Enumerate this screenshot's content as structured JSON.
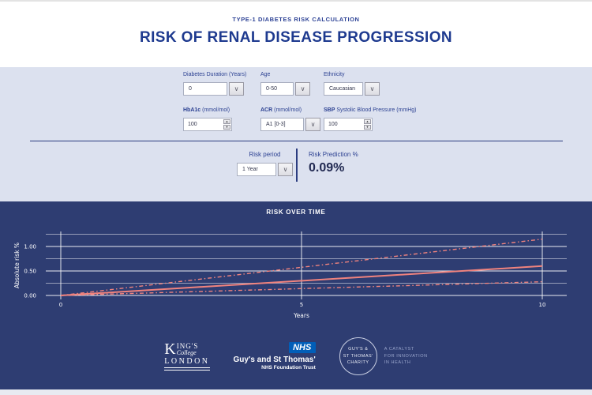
{
  "header": {
    "eyebrow": "TYPE-1 DIABETES RISK CALCULATION",
    "title": "RISK OF RENAL DISEASE PROGRESSION"
  },
  "form": {
    "diabetes_duration": {
      "label": "Diabetes Duration (Years)",
      "value": "0"
    },
    "age": {
      "label": "Age",
      "value": "0-50"
    },
    "ethnicity": {
      "label": "Ethnicity",
      "value": "Caucasian"
    },
    "hba1c": {
      "label_bold": "HbA1c",
      "label_rest": " (mmol/mol)",
      "value": "100"
    },
    "acr": {
      "label_bold": "ACR",
      "label_rest": " (mmol/mol)",
      "value": "A1 [0-3]"
    },
    "sbp": {
      "label_bold": "SBP",
      "label_rest": " Systolic Blood Pressure (mmHg)",
      "value": "100"
    },
    "risk_period": {
      "label": "Risk period",
      "value": "1 Year"
    },
    "risk_prediction": {
      "label": "Risk Prediction %",
      "value": "0.09%"
    }
  },
  "icons": {
    "chevron_down": "∨",
    "spin_up": "▲",
    "spin_down": "▼"
  },
  "chart_data": {
    "type": "line",
    "title": "RISK OVER TIME",
    "xlabel": "Years",
    "ylabel": "Absolute risk %",
    "xlim": [
      0,
      10
    ],
    "ylim": [
      0,
      1.25
    ],
    "x_ticks": [
      0,
      5,
      10
    ],
    "x_tick_labels": [
      "0",
      "5",
      "10"
    ],
    "y_ticks": [
      0,
      0.5,
      1
    ],
    "y_tick_labels": [
      "0.00",
      "0.50",
      "1.00"
    ],
    "y_gridlines": [
      0,
      0.25,
      0.5,
      0.75,
      1.0,
      1.25
    ],
    "grid": true,
    "legend": "none",
    "background": "#2e3d72",
    "line_color": "#f0837e",
    "series": [
      {
        "name": "upper confidence bound",
        "style": "dashdot",
        "color": "#f0837e",
        "x": [
          0,
          10
        ],
        "y": [
          0.0,
          1.15
        ]
      },
      {
        "name": "predicted risk",
        "style": "solid",
        "color": "#f0837e",
        "x": [
          0,
          10
        ],
        "y": [
          0.0,
          0.6
        ]
      },
      {
        "name": "lower confidence bound",
        "style": "dashdot",
        "color": "#f0837e",
        "x": [
          0,
          10
        ],
        "y": [
          0.0,
          0.28
        ]
      }
    ]
  },
  "footer": {
    "kcl": {
      "k": "K",
      "ings": "ING'S",
      "college": "College",
      "london": "LONDON"
    },
    "nhs": {
      "logo": "NHS",
      "name": "Guy's and St Thomas'",
      "sub": "NHS Foundation Trust"
    },
    "charity": {
      "circle": [
        "GUY'S &",
        "ST THOMAS'",
        "CHARITY"
      ],
      "tagline": [
        "A CATALYST",
        "FOR INNOVATION",
        "IN HEALTH"
      ]
    }
  },
  "colors": {
    "accent_navy": "#2e3d72",
    "title_blue": "#1e3a8f",
    "panel_bg": "#dce1ef",
    "line_coral": "#f0837e",
    "nhs_blue": "#015eb8"
  }
}
